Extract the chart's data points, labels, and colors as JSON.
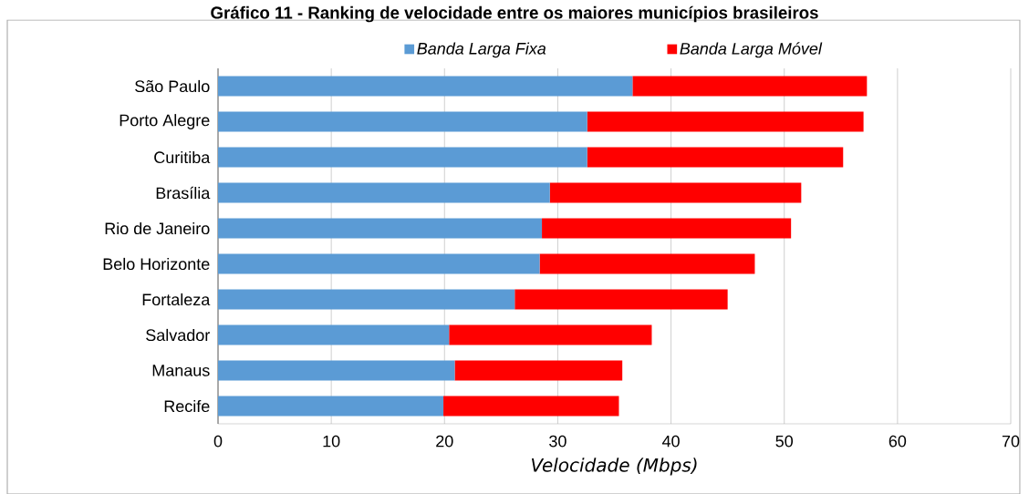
{
  "chart_data": {
    "type": "bar",
    "orientation": "horizontal",
    "stacked": true,
    "title": "Gráfico 11 - Ranking de velocidade entre os maiores municípios brasileiros",
    "xlabel": "Velocidade (Mbps)",
    "categories": [
      "São Paulo",
      "Porto Alegre",
      "Curitiba",
      "Brasília",
      "Rio de Janeiro",
      "Belo Horizonte",
      "Fortaleza",
      "Salvador",
      "Manaus",
      "Recife"
    ],
    "series": [
      {
        "name": "Banda Larga Fixa",
        "color": "#5b9bd5",
        "values": [
          36.6,
          32.6,
          32.6,
          29.3,
          28.6,
          28.4,
          26.2,
          20.4,
          20.9,
          19.9
        ]
      },
      {
        "name": "Banda Larga Móvel",
        "color": "#ff0000",
        "values": [
          20.7,
          24.4,
          22.6,
          22.2,
          22.0,
          19.0,
          18.8,
          17.9,
          14.8,
          15.5
        ]
      }
    ],
    "xlim": [
      0,
      70
    ],
    "xticks": [
      0,
      10,
      20,
      30,
      40,
      50,
      60,
      70
    ],
    "grid": "x",
    "legend": "top"
  }
}
